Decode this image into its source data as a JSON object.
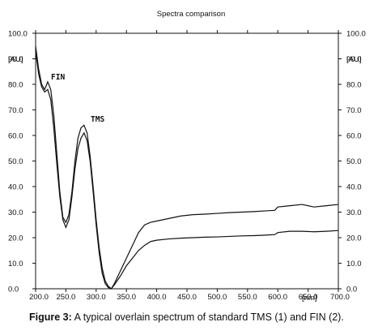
{
  "chart_data": {
    "type": "line",
    "title": "Spectra comparison",
    "xlabel": "[nm]",
    "ylabel": "[AU]",
    "xlim": [
      200,
      700
    ],
    "ylim": [
      0,
      100
    ],
    "x_ticks": [
      "200.0",
      "250.0",
      "300.0",
      "350.0",
      "400.0",
      "450.0",
      "500.0",
      "550.0",
      "600.0",
      "650.0",
      "700.0"
    ],
    "y_ticks": [
      "0.0",
      "10.0",
      "20.0",
      "30.0",
      "40.0",
      "50.0",
      "60.0",
      "70.0",
      "80.0",
      "90.0",
      "100.0"
    ],
    "annotations": [
      "FIN",
      "TMS"
    ],
    "series": [
      {
        "name": "FIN",
        "x": [
          200,
          205,
          210,
          215,
          220,
          225,
          230,
          235,
          240,
          245,
          250,
          255,
          260,
          265,
          270,
          275,
          280,
          285,
          290,
          295,
          300,
          305,
          310,
          315,
          320,
          325,
          330,
          340,
          350,
          360,
          370,
          380,
          390,
          400,
          420,
          440,
          460,
          480,
          500,
          520,
          540,
          560,
          580,
          595,
          600,
          620,
          640,
          660,
          680,
          700
        ],
        "y": [
          95,
          86,
          80,
          78,
          81,
          78,
          68,
          53,
          38,
          28,
          26,
          29,
          38,
          50,
          59,
          63,
          64,
          61,
          52,
          40,
          27,
          16,
          8,
          3,
          1,
          0,
          2,
          7,
          12,
          17,
          22,
          25,
          26,
          26.5,
          27.5,
          28.5,
          29,
          29.2,
          29.5,
          29.8,
          30,
          30.2,
          30.5,
          30.7,
          32,
          32.5,
          33,
          32,
          32.5,
          33
        ]
      },
      {
        "name": "TMS",
        "x": [
          200,
          205,
          210,
          215,
          220,
          225,
          230,
          235,
          240,
          245,
          250,
          255,
          260,
          265,
          270,
          275,
          280,
          285,
          290,
          295,
          300,
          305,
          310,
          315,
          320,
          325,
          330,
          340,
          350,
          360,
          370,
          380,
          390,
          400,
          420,
          440,
          460,
          480,
          500,
          520,
          540,
          560,
          580,
          595,
          600,
          620,
          640,
          660,
          680,
          700
        ],
        "y": [
          93,
          84,
          79,
          77,
          78,
          74,
          63,
          49,
          36,
          27,
          24,
          27,
          36,
          47,
          55,
          59,
          61,
          58,
          50,
          38,
          25,
          14,
          6,
          2,
          0.5,
          0,
          1.5,
          5,
          9,
          12,
          15,
          17,
          18.5,
          19,
          19.5,
          19.8,
          20,
          20.2,
          20.3,
          20.5,
          20.7,
          20.8,
          21,
          21.2,
          22,
          22.5,
          22.5,
          22.3,
          22.5,
          22.8
        ]
      }
    ]
  },
  "caption": {
    "label": "Figure 3:",
    "text": " A typical overlain spectrum of standard TMS (1) and FIN (2)."
  }
}
